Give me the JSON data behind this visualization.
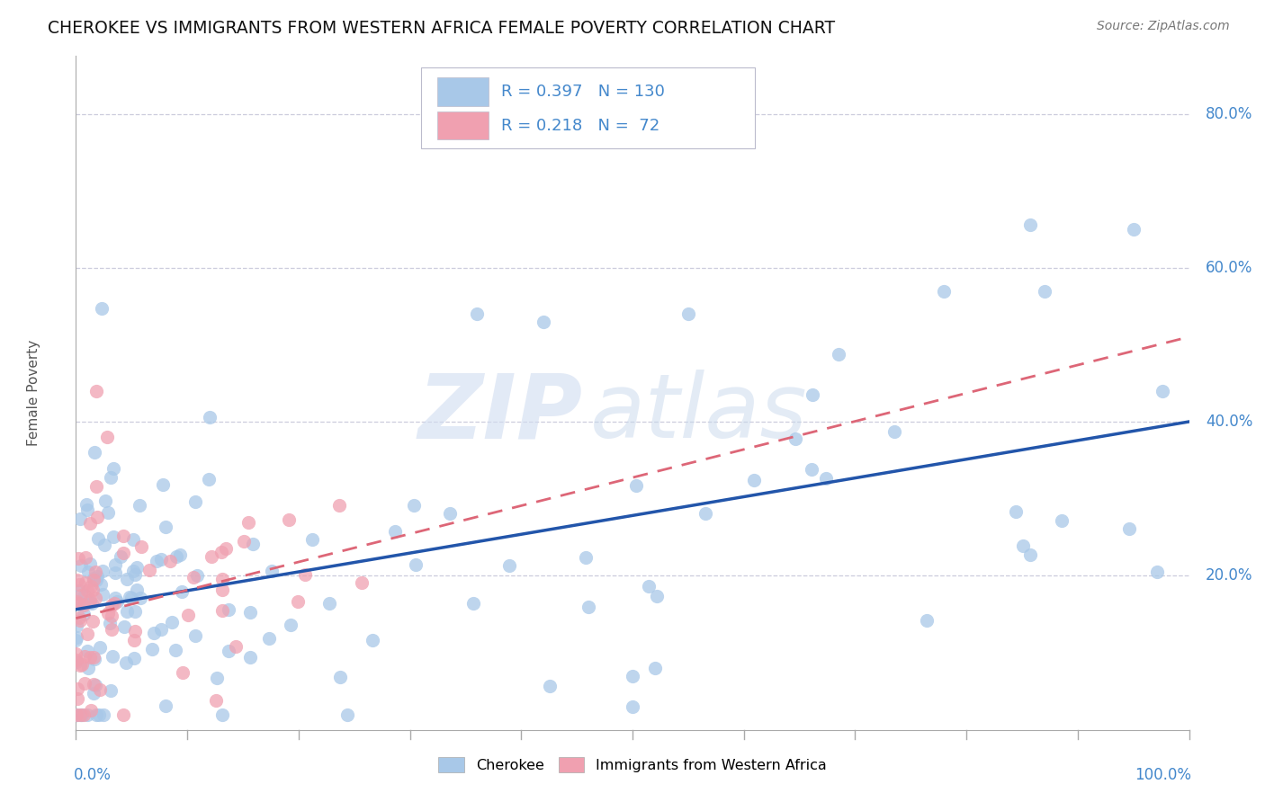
{
  "title": "CHEROKEE VS IMMIGRANTS FROM WESTERN AFRICA FEMALE POVERTY CORRELATION CHART",
  "source": "Source: ZipAtlas.com",
  "ylabel": "Female Poverty",
  "xlim": [
    0,
    1.0
  ],
  "ylim": [
    0,
    0.875
  ],
  "color_cherokee": "#A8C8E8",
  "color_africa": "#F0A0B0",
  "color_cherokee_line": "#2255AA",
  "color_africa_line": "#DD6677",
  "color_axis_labels": "#4488CC",
  "background_color": "#FFFFFF",
  "watermark_zip_color": "#C8D8F0",
  "watermark_atlas_color": "#B0C8E8",
  "grid_color": "#CCCCDD",
  "ytick_vals": [
    0.2,
    0.4,
    0.6,
    0.8
  ],
  "ytick_labels": [
    "20.0%",
    "40.0%",
    "60.0%",
    "80.0%"
  ]
}
